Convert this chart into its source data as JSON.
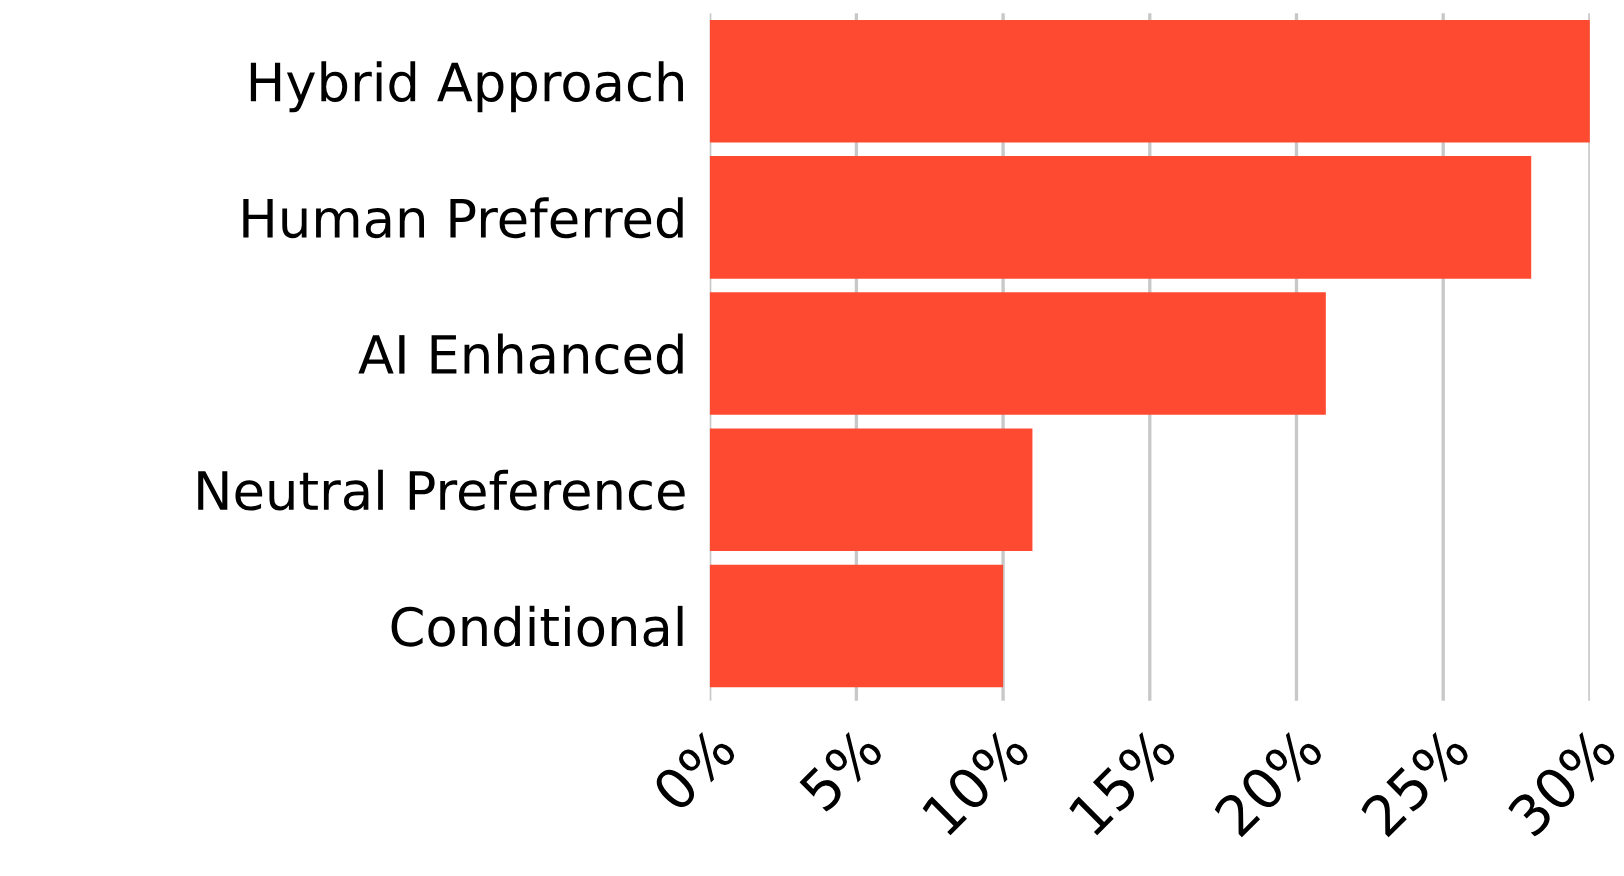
{
  "chart_data": {
    "type": "bar",
    "orientation": "horizontal",
    "categories": [
      "Hybrid Approach",
      "Human Preferred",
      "AI Enhanced",
      "Neutral Preference",
      "Conditional"
    ],
    "values": [
      30,
      28,
      21,
      11,
      10
    ],
    "color": "#ff4a32",
    "xlim": [
      0,
      30
    ],
    "xticks": [
      {
        "value": 0,
        "label": "0%"
      },
      {
        "value": 5,
        "label": "5%"
      },
      {
        "value": 10,
        "label": "10%"
      },
      {
        "value": 15,
        "label": "15%"
      },
      {
        "value": 20,
        "label": "20%"
      },
      {
        "value": 25,
        "label": "25%"
      },
      {
        "value": 30,
        "label": "30%"
      }
    ],
    "grid": "x",
    "legend": false
  }
}
